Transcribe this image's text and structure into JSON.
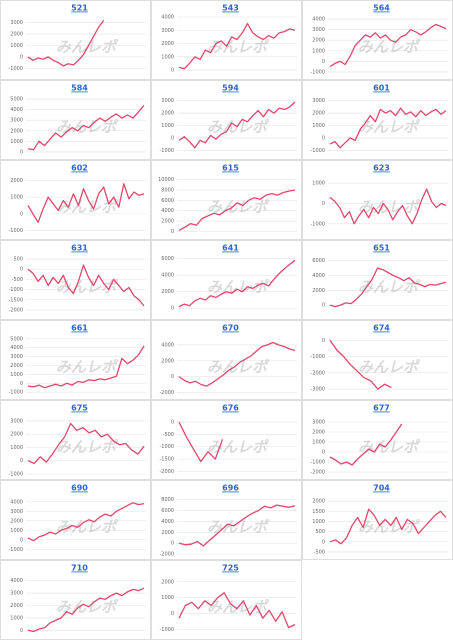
{
  "watermark": "みんレポ",
  "chart_data": [
    {
      "type": "line",
      "title": "521",
      "color": "#e2476b",
      "ylim": [
        -1500,
        3500
      ],
      "yticks": [
        -1000,
        0,
        1000,
        2000,
        3000
      ],
      "grid": true,
      "values": [
        0,
        -300,
        -100,
        -200,
        0,
        -300,
        -500,
        -800,
        -600,
        -700,
        -300,
        200,
        1000,
        1800,
        2600,
        3200,
        null,
        null,
        null,
        null,
        null,
        null,
        null,
        null
      ]
    },
    {
      "type": "line",
      "title": "543",
      "color": "#e2476b",
      "ylim": [
        -300,
        4000
      ],
      "yticks": [
        0,
        1000,
        2000,
        3000,
        4000
      ],
      "grid": true,
      "values": [
        200,
        100,
        500,
        1000,
        800,
        1500,
        1300,
        2000,
        2200,
        1800,
        2500,
        2300,
        2800,
        3500,
        2800,
        2500,
        2300,
        2600,
        2400,
        2800,
        2900,
        3100,
        3000
      ]
    },
    {
      "type": "line",
      "title": "564",
      "color": "#e2476b",
      "ylim": [
        -1200,
        4200
      ],
      "yticks": [
        -1000,
        0,
        1000,
        2000,
        3000,
        4000
      ],
      "grid": true,
      "values": [
        -500,
        -200,
        0,
        -300,
        500,
        1500,
        2000,
        2500,
        2300,
        2700,
        2200,
        2500,
        2000,
        1800,
        2300,
        2500,
        3000,
        2800,
        2500,
        2800,
        3200,
        3500,
        3300,
        3100
      ]
    },
    {
      "type": "line",
      "title": "584",
      "color": "#e2476b",
      "ylim": [
        -200,
        5200
      ],
      "yticks": [
        0,
        1000,
        2000,
        3000,
        4000,
        5000
      ],
      "grid": true,
      "values": [
        300,
        200,
        1000,
        600,
        1200,
        1800,
        1400,
        1900,
        2300,
        2000,
        2500,
        2300,
        2800,
        3200,
        2900,
        3300,
        3600,
        3200,
        3500,
        3200,
        3800,
        4400
      ]
    },
    {
      "type": "line",
      "title": "594",
      "color": "#e2476b",
      "ylim": [
        -1300,
        3300
      ],
      "yticks": [
        -1000,
        0,
        1000,
        2000,
        3000
      ],
      "grid": true,
      "values": [
        -200,
        100,
        -300,
        -800,
        -200,
        -400,
        200,
        -100,
        300,
        500,
        1200,
        900,
        1500,
        1300,
        1800,
        2200,
        1700,
        2300,
        2000,
        2400,
        2300,
        2500,
        2900
      ]
    },
    {
      "type": "line",
      "title": "601",
      "color": "#e2476b",
      "ylim": [
        -1300,
        3300
      ],
      "yticks": [
        -1000,
        0,
        1000,
        2000,
        3000
      ],
      "grid": true,
      "values": [
        -500,
        -300,
        -800,
        -400,
        0,
        -200,
        700,
        1200,
        1800,
        1300,
        2300,
        2000,
        2200,
        1800,
        2400,
        1900,
        2100,
        1700,
        2200,
        1800,
        2100,
        2300,
        1900,
        2200
      ]
    },
    {
      "type": "line",
      "title": "602",
      "color": "#e2476b",
      "ylim": [
        -1200,
        2200
      ],
      "yticks": [
        -1000,
        0,
        1000,
        2000
      ],
      "grid": true,
      "values": [
        500,
        0,
        -500,
        300,
        1000,
        600,
        200,
        800,
        400,
        1200,
        500,
        1500,
        800,
        300,
        1200,
        1600,
        600,
        1000,
        400,
        1800,
        900,
        1300,
        1100,
        1200
      ]
    },
    {
      "type": "line",
      "title": "615",
      "color": "#e2476b",
      "ylim": [
        -500,
        10500
      ],
      "yticks": [
        0,
        2000,
        4000,
        6000,
        8000,
        10000
      ],
      "grid": true,
      "values": [
        200,
        800,
        1500,
        1200,
        2500,
        3000,
        3500,
        3200,
        4000,
        4500,
        5500,
        5000,
        6000,
        6500,
        6200,
        7000,
        7300,
        7000,
        7500,
        7800,
        8000
      ]
    },
    {
      "type": "line",
      "title": "623",
      "color": "#e2476b",
      "ylim": [
        -1500,
        1300
      ],
      "yticks": [
        -1000,
        0,
        1000
      ],
      "grid": true,
      "values": [
        300,
        100,
        -200,
        -700,
        -400,
        -1000,
        -600,
        -300,
        -700,
        -200,
        -500,
        0,
        -300,
        -800,
        -400,
        -100,
        -600,
        -1000,
        -500,
        200,
        700,
        100,
        -200,
        0,
        -100
      ]
    },
    {
      "type": "line",
      "title": "631",
      "color": "#e2476b",
      "ylim": [
        -2200,
        600
      ],
      "yticks": [
        500,
        0,
        -500,
        -1000,
        -1500,
        -2000
      ],
      "grid": true,
      "values": [
        0,
        -200,
        -600,
        -300,
        -800,
        -400,
        -700,
        -300,
        -900,
        -1200,
        -600,
        200,
        -400,
        -800,
        -300,
        -700,
        -1000,
        -500,
        -800,
        -1100,
        -900,
        -1300,
        -1500,
        -1800
      ]
    },
    {
      "type": "line",
      "title": "641",
      "color": "#e2476b",
      "ylim": [
        -700,
        6200
      ],
      "yticks": [
        0,
        2000,
        4000,
        6000
      ],
      "grid": true,
      "values": [
        200,
        500,
        300,
        900,
        1200,
        1000,
        1500,
        1300,
        1700,
        2000,
        1800,
        2300,
        2000,
        2600,
        2400,
        2800,
        3000,
        2700,
        3500,
        4200,
        4800,
        5300,
        5800
      ]
    },
    {
      "type": "line",
      "title": "651",
      "color": "#e2476b",
      "ylim": [
        -1200,
        6500
      ],
      "yticks": [
        0,
        2000,
        4000,
        6000
      ],
      "grid": true,
      "values": [
        0,
        -200,
        0,
        300,
        200,
        800,
        1500,
        2500,
        3500,
        5000,
        4800,
        4400,
        4000,
        3700,
        3300,
        3700,
        3000,
        2800,
        2500,
        2800,
        2700,
        2900,
        3100
      ]
    },
    {
      "type": "line",
      "title": "661",
      "color": "#e2476b",
      "ylim": [
        -1200,
        5200
      ],
      "yticks": [
        -1000,
        0,
        1000,
        2000,
        3000,
        4000,
        5000
      ],
      "grid": true,
      "values": [
        -300,
        -400,
        -200,
        -500,
        -300,
        -100,
        -300,
        0,
        -200,
        200,
        100,
        400,
        300,
        500,
        400,
        600,
        800,
        2800,
        2200,
        2600,
        3200,
        4200
      ]
    },
    {
      "type": "line",
      "title": "670",
      "color": "#e2476b",
      "ylim": [
        -2200,
        5000
      ],
      "yticks": [
        -2000,
        0,
        2000,
        4000
      ],
      "grid": true,
      "values": [
        0,
        -500,
        -800,
        -600,
        -1000,
        -1200,
        -800,
        -300,
        200,
        800,
        1200,
        1800,
        2200,
        2600,
        3200,
        3800,
        4000,
        4300,
        4000,
        3800,
        3500,
        3300
      ]
    },
    {
      "type": "line",
      "title": "674",
      "color": "#e2476b",
      "ylim": [
        -3300,
        200
      ],
      "yticks": [
        0,
        -1000,
        -2000,
        -3000
      ],
      "grid": true,
      "values": [
        0,
        -600,
        -1000,
        -1500,
        -1900,
        -2300,
        -2500,
        -3000,
        -2700,
        -2900,
        null,
        null,
        null,
        null,
        null,
        null,
        null,
        null
      ]
    },
    {
      "type": "line",
      "title": "675",
      "color": "#e2476b",
      "ylim": [
        -1000,
        3300
      ],
      "yticks": [
        -1000,
        0,
        1000,
        2000,
        3000
      ],
      "grid": true,
      "values": [
        0,
        -200,
        300,
        -100,
        500,
        1200,
        1800,
        2800,
        2300,
        2500,
        2100,
        2300,
        1800,
        2000,
        1500,
        1200,
        1300,
        800,
        500,
        1100
      ]
    },
    {
      "type": "line",
      "title": "676",
      "color": "#e2476b",
      "ylim": [
        -2100,
        200
      ],
      "yticks": [
        0,
        -500,
        -1000,
        -1500,
        -2000
      ],
      "grid": true,
      "values": [
        0,
        -600,
        -1100,
        -1600,
        -1200,
        -1500,
        -700,
        null,
        null,
        null,
        null,
        null,
        null,
        null,
        null,
        null,
        null
      ]
    },
    {
      "type": "line",
      "title": "677",
      "color": "#e2476b",
      "ylim": [
        -2200,
        3500
      ],
      "yticks": [
        -2000,
        -1000,
        0,
        1000,
        2000,
        3000
      ],
      "grid": true,
      "values": [
        -500,
        -800,
        -1200,
        -1000,
        -1300,
        -700,
        -200,
        300,
        0,
        800,
        500,
        1200,
        2000,
        2800,
        null,
        null,
        null,
        null,
        null,
        null,
        null,
        null
      ]
    },
    {
      "type": "line",
      "title": "690",
      "color": "#e2476b",
      "ylim": [
        -1500,
        4500
      ],
      "yticks": [
        -1000,
        0,
        1000,
        2000,
        3000,
        4000
      ],
      "grid": true,
      "values": [
        200,
        -100,
        300,
        500,
        800,
        600,
        1000,
        1200,
        1500,
        1300,
        1800,
        2100,
        1900,
        2400,
        2700,
        2500,
        3000,
        3300,
        3600,
        3900,
        3700,
        3800
      ]
    },
    {
      "type": "line",
      "title": "696",
      "color": "#e2476b",
      "ylim": [
        -2000,
        8500
      ],
      "yticks": [
        -2000,
        0,
        2000,
        4000,
        6000,
        8000
      ],
      "grid": true,
      "values": [
        0,
        -300,
        -200,
        300,
        -500,
        500,
        1500,
        2500,
        3500,
        3200,
        4000,
        4800,
        5500,
        6000,
        6800,
        6500,
        7000,
        6800,
        6600,
        6900
      ]
    },
    {
      "type": "line",
      "title": "704",
      "color": "#e2476b",
      "ylim": [
        -600,
        2200
      ],
      "yticks": [
        -500,
        0,
        500,
        1000,
        1500,
        2000
      ],
      "grid": true,
      "values": [
        0,
        100,
        -100,
        200,
        800,
        1200,
        700,
        1600,
        1300,
        800,
        1100,
        800,
        1200,
        600,
        1100,
        900,
        400,
        700,
        1000,
        1300,
        1500,
        1200
      ]
    },
    {
      "type": "line",
      "title": "710",
      "color": "#e2476b",
      "ylim": [
        -300,
        4300
      ],
      "yticks": [
        0,
        1000,
        2000,
        3000,
        4000
      ],
      "grid": true,
      "values": [
        0,
        -100,
        100,
        200,
        600,
        800,
        1000,
        1500,
        1300,
        1800,
        2100,
        1900,
        2300,
        2600,
        2500,
        2800,
        3000,
        2800,
        3100,
        3300,
        3200,
        3400
      ]
    },
    {
      "type": "line",
      "title": "725",
      "color": "#e2476b",
      "ylim": [
        -1300,
        2300
      ],
      "yticks": [
        -1000,
        0,
        1000,
        2000
      ],
      "grid": true,
      "values": [
        -300,
        500,
        700,
        300,
        800,
        500,
        1000,
        1300,
        600,
        300,
        800,
        -100,
        500,
        -300,
        200,
        -500,
        100,
        -900,
        -700
      ]
    }
  ]
}
